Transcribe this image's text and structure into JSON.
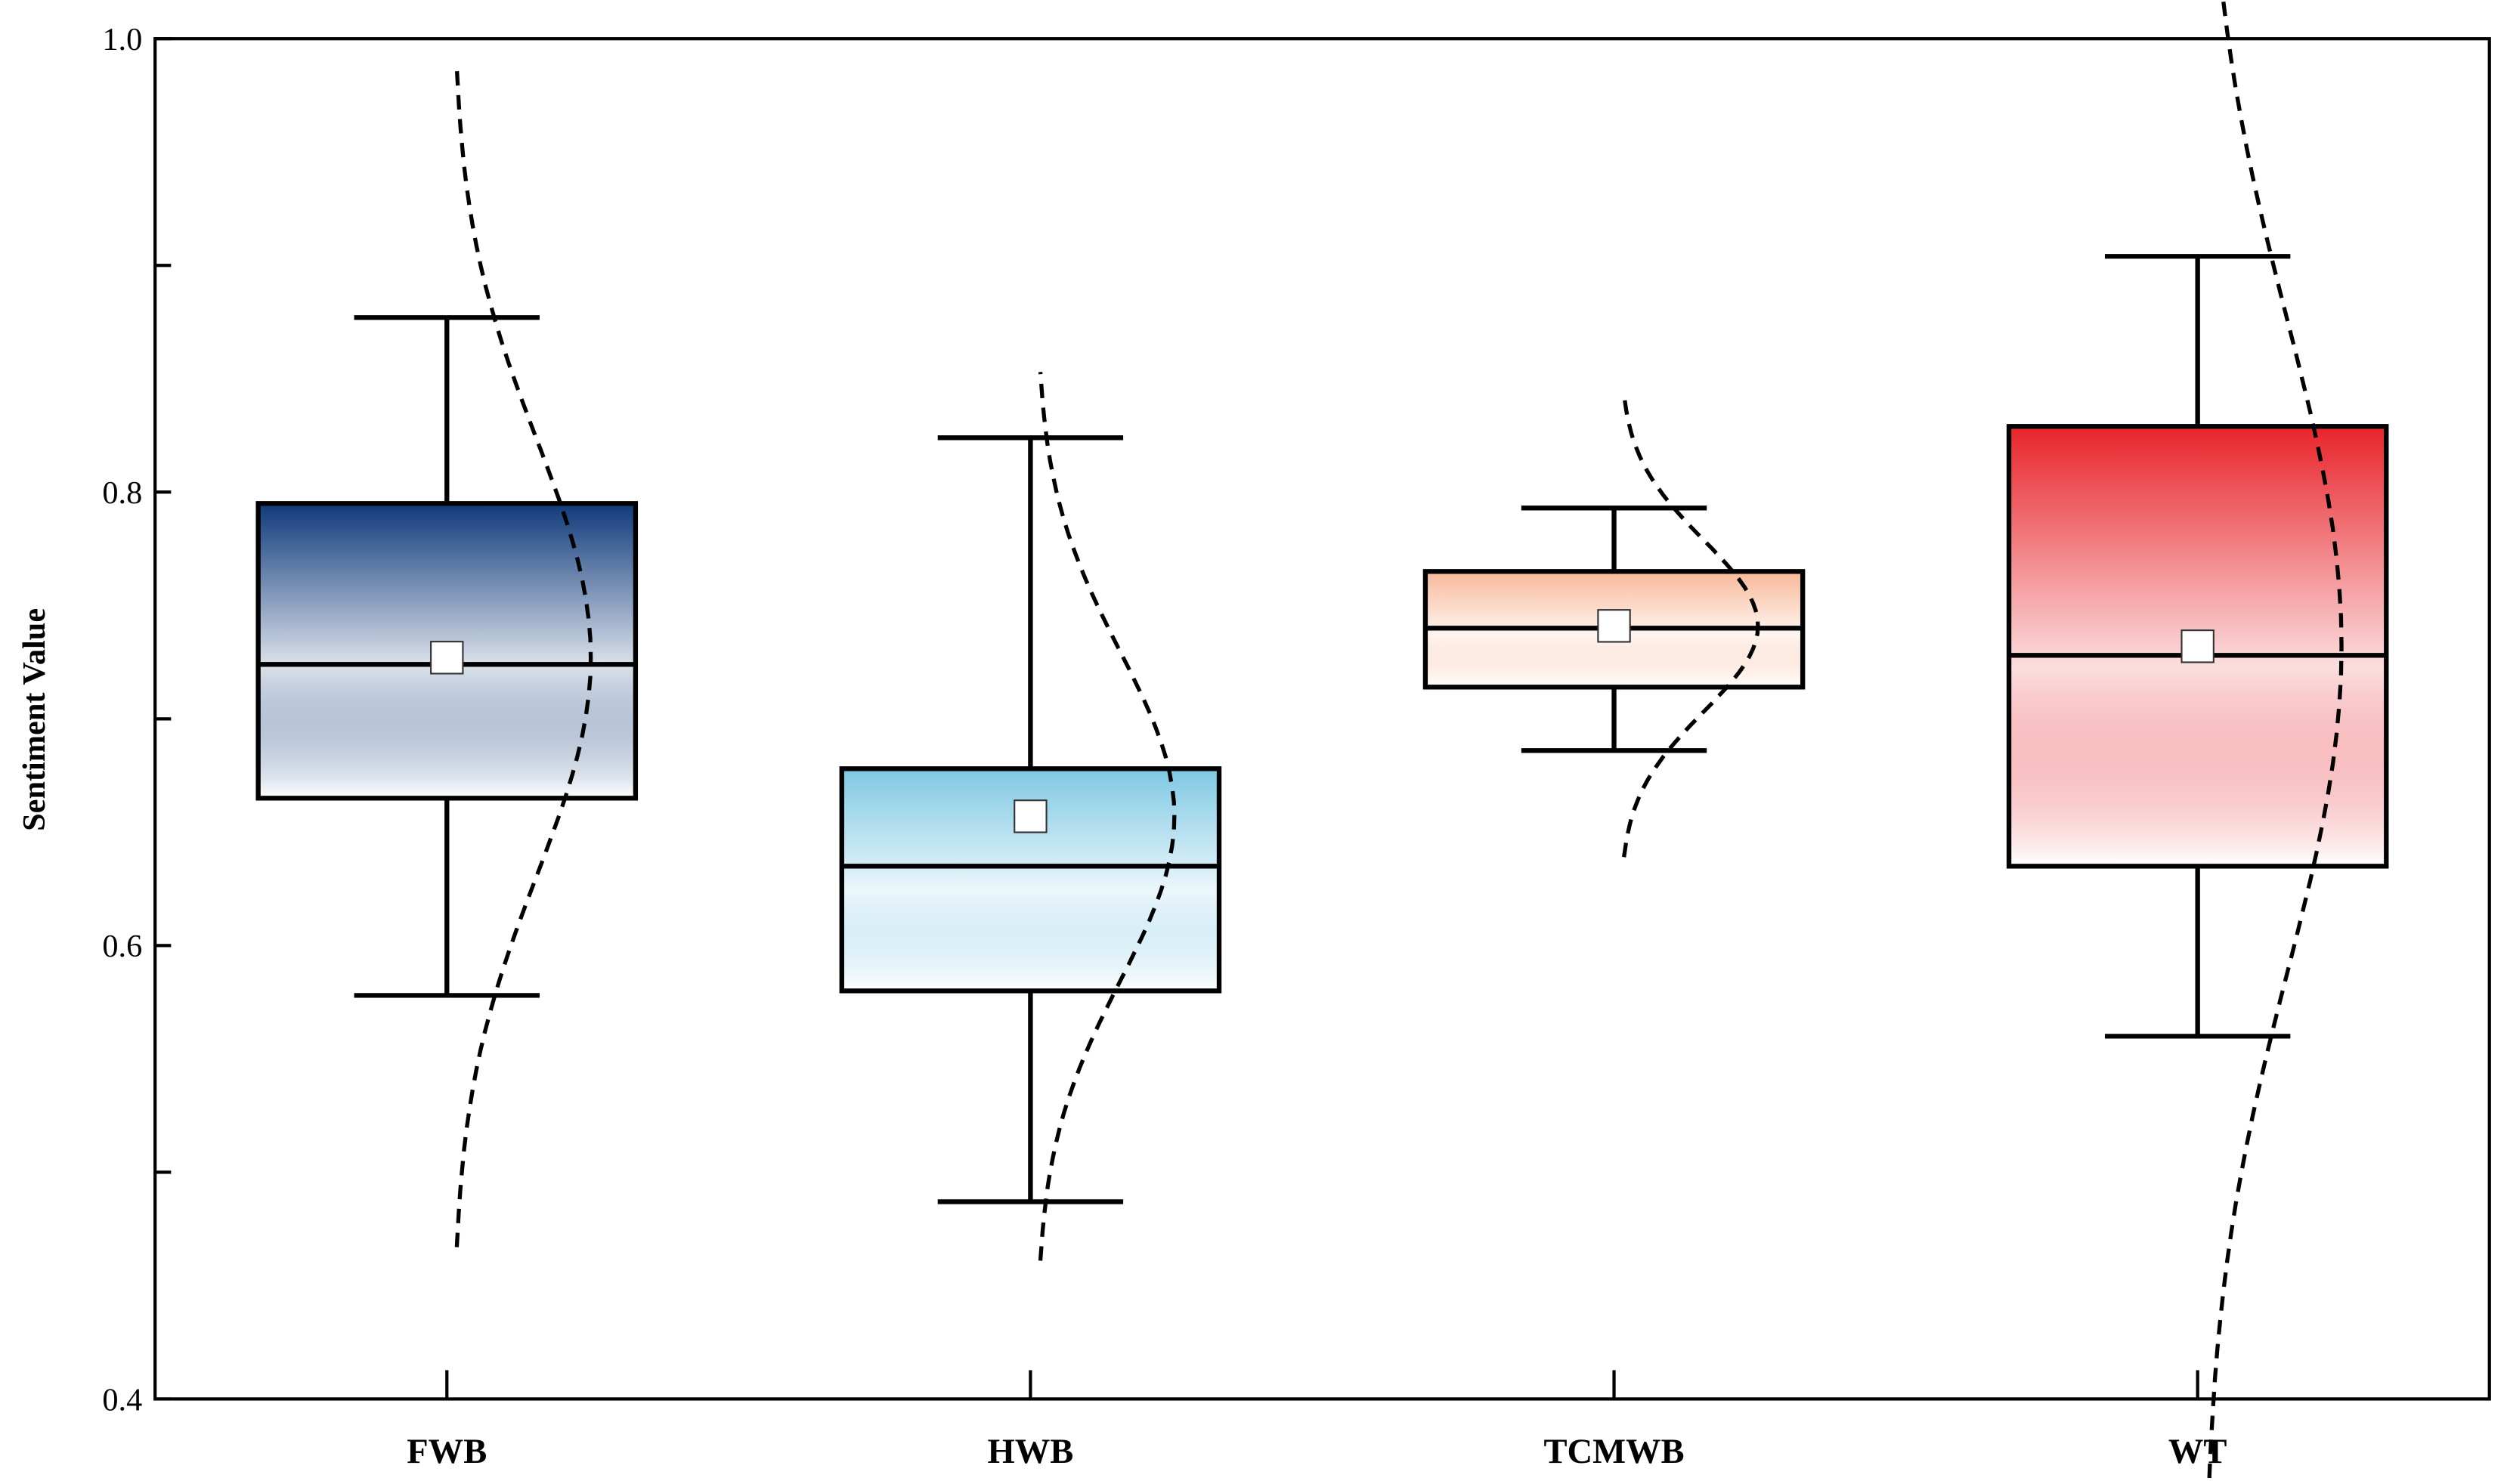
{
  "chart_data": {
    "type": "box",
    "y_label": "Sentiment Value",
    "categories": [
      "FWB",
      "HWB",
      "TCMWB",
      "WT"
    ],
    "series": [
      {
        "name": "FWB",
        "color": "#0f3a7a",
        "whisker_low": 0.578,
        "q1": 0.665,
        "median": 0.724,
        "q3": 0.795,
        "whisker_high": 0.877,
        "mean": 0.727
      },
      {
        "name": "HWB",
        "color": "#7ec8e3",
        "whisker_low": 0.487,
        "q1": 0.58,
        "median": 0.635,
        "q3": 0.678,
        "whisker_high": 0.824,
        "mean": 0.657
      },
      {
        "name": "TCMWB",
        "color": "#f8b999",
        "whisker_low": 0.686,
        "q1": 0.714,
        "median": 0.74,
        "q3": 0.765,
        "whisker_high": 0.793,
        "mean": 0.741
      },
      {
        "name": "WT",
        "color": "#e8242a",
        "whisker_low": 0.56,
        "q1": 0.635,
        "median": 0.728,
        "q3": 0.829,
        "whisker_high": 0.904,
        "mean": 0.732
      }
    ],
    "ylim": [
      0.4,
      1.0
    ],
    "yticks": [
      0.4,
      0.6,
      0.8,
      {
        "value": 1.0,
        "label": "1.0"
      }
    ],
    "minor_yticks": [
      0.5,
      0.7,
      0.9
    ]
  }
}
